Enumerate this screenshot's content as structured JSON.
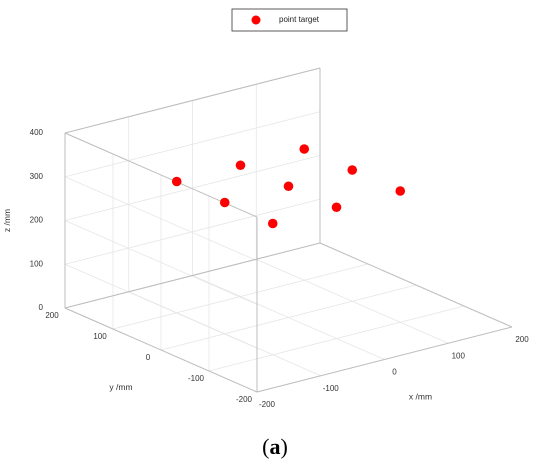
{
  "chart_data": {
    "type": "scatter",
    "projection": "3d",
    "xlabel": "x /mm",
    "ylabel": "y /mm",
    "zlabel": "z /mm",
    "xlim": [
      -200,
      200
    ],
    "ylim": [
      -200,
      200
    ],
    "zlim": [
      0,
      400
    ],
    "xticks": [
      "-200",
      "-100",
      "0",
      "100",
      "200"
    ],
    "yticks": [
      "-200",
      "-100",
      "0",
      "100",
      "200"
    ],
    "zticks": [
      "0",
      "100",
      "200",
      "300",
      "400"
    ],
    "grid": true,
    "legend_position": "top-center",
    "series": [
      {
        "name": "point target",
        "color": "#ff0000",
        "marker": "filled-circle",
        "points": [
          {
            "x": -100,
            "y": 100,
            "z": 300
          },
          {
            "x": 0,
            "y": 100,
            "z": 300
          },
          {
            "x": 100,
            "y": 100,
            "z": 300
          },
          {
            "x": -100,
            "y": 0,
            "z": 300
          },
          {
            "x": 0,
            "y": 0,
            "z": 300
          },
          {
            "x": 100,
            "y": 0,
            "z": 300
          },
          {
            "x": -100,
            "y": -100,
            "z": 300
          },
          {
            "x": 0,
            "y": -100,
            "z": 300
          },
          {
            "x": 100,
            "y": -100,
            "z": 300
          }
        ]
      }
    ]
  },
  "caption": {
    "open": "(",
    "letter": "a",
    "close": ")"
  }
}
